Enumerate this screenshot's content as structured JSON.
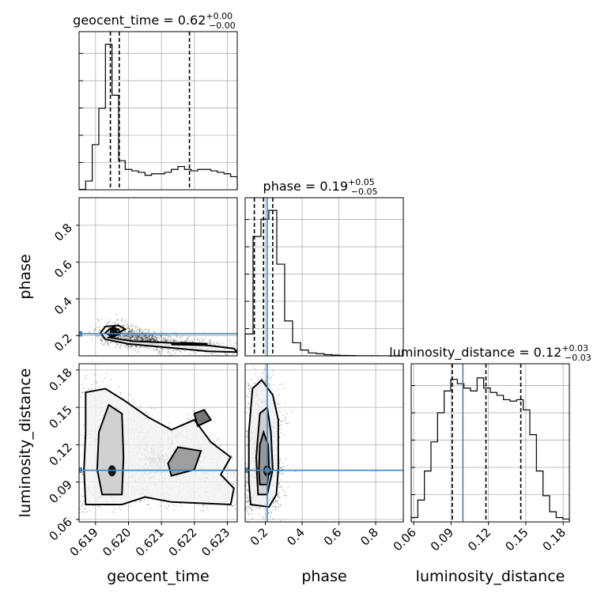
{
  "chart_data": {
    "type": "corner",
    "parameters": [
      {
        "name": "geocent_time",
        "axis_label": "geocent_time",
        "range": [
          0.6185,
          0.6233
        ],
        "ticks": [
          0.619,
          0.62,
          0.621,
          0.622,
          0.623
        ],
        "tick_labels": [
          "0.619",
          "0.620",
          "0.621",
          "0.622",
          "0.623"
        ],
        "title": {
          "prefix": "geocent_time = 0.62",
          "plus": "+0.00",
          "minus": "−0.00"
        },
        "quantiles": [
          0.61945,
          0.61972,
          0.62185
        ],
        "truth": null,
        "histogram": [
          0.003,
          0.06,
          0.31,
          0.56,
          1.0,
          0.65,
          0.2,
          0.14,
          0.13,
          0.12,
          0.1,
          0.11,
          0.11,
          0.12,
          0.14,
          0.16,
          0.14,
          0.13,
          0.14,
          0.14,
          0.13,
          0.12,
          0.11,
          0.09
        ]
      },
      {
        "name": "phase",
        "axis_label": "phase",
        "range": [
          0.09,
          0.95
        ],
        "ticks": [
          0.2,
          0.4,
          0.6,
          0.8
        ],
        "tick_labels": [
          "0.2",
          "0.4",
          "0.6",
          "0.8"
        ],
        "title": {
          "prefix": "phase = 0.19",
          "plus": "+0.05",
          "minus": "−0.05"
        },
        "quantiles": [
          0.14,
          0.19,
          0.24
        ],
        "truth": 0.21,
        "histogram": [
          0.15,
          0.82,
          0.94,
          1.0,
          0.63,
          0.24,
          0.09,
          0.04,
          0.02,
          0.015,
          0.008,
          0.005,
          0.003,
          0.002,
          0.001,
          0.001,
          0.0005,
          0.0003,
          0.0002,
          0.0001
        ]
      },
      {
        "name": "luminosity_distance",
        "axis_label": "luminosity_distance",
        "range": [
          0.058,
          0.185
        ],
        "ticks": [
          0.06,
          0.09,
          0.12,
          0.15,
          0.18
        ],
        "tick_labels": [
          "0.06",
          "0.09",
          "0.12",
          "0.15",
          "0.18"
        ],
        "title": {
          "prefix": "luminosity_distance = 0.12",
          "plus": "+0.03",
          "minus": "−0.03"
        },
        "quantiles": [
          0.091,
          0.118,
          0.146
        ],
        "truth": 0.0995,
        "histogram": [
          0.03,
          0.15,
          0.35,
          0.55,
          0.75,
          0.9,
          0.98,
          0.95,
          0.92,
          0.9,
          0.99,
          0.92,
          0.89,
          0.87,
          0.84,
          0.83,
          0.84,
          0.77,
          0.6,
          0.35,
          0.18,
          0.07,
          0.03,
          0.02
        ]
      }
    ],
    "panels_2d": [
      {
        "x": "geocent_time",
        "y": "phase",
        "density_peak": [
          0.61955,
          0.22
        ],
        "contours": [
          [
            [
              0.6194,
              0.19
            ],
            [
              0.6201,
              0.17
            ],
            [
              0.6214,
              0.16
            ],
            [
              0.6225,
              0.145
            ],
            [
              0.6232,
              0.13
            ],
            [
              0.6233,
              0.11
            ],
            [
              0.6224,
              0.115
            ],
            [
              0.6212,
              0.135
            ],
            [
              0.62,
              0.155
            ],
            [
              0.6193,
              0.18
            ],
            [
              0.61915,
              0.215
            ],
            [
              0.6193,
              0.25
            ],
            [
              0.6197,
              0.255
            ],
            [
              0.6199,
              0.235
            ],
            [
              0.6194,
              0.19
            ]
          ],
          [
            [
              0.6195,
              0.195
            ],
            [
              0.6193,
              0.215
            ],
            [
              0.61945,
              0.24
            ],
            [
              0.6197,
              0.235
            ],
            [
              0.61975,
              0.21
            ],
            [
              0.6195,
              0.195
            ]
          ],
          [
            [
              0.6213,
              0.152
            ],
            [
              0.6222,
              0.148
            ],
            [
              0.6224,
              0.156
            ],
            [
              0.6216,
              0.162
            ],
            [
              0.6213,
              0.152
            ]
          ]
        ]
      },
      {
        "x": "geocent_time",
        "y": "luminosity_distance",
        "density_peak": [
          0.6195,
          0.099
        ],
        "contours": [
          [
            [
              0.6187,
              0.072
            ],
            [
              0.6198,
              0.072
            ],
            [
              0.6205,
              0.078
            ],
            [
              0.6213,
              0.074
            ],
            [
              0.6222,
              0.073
            ],
            [
              0.6231,
              0.072
            ],
            [
              0.6232,
              0.085
            ],
            [
              0.6228,
              0.096
            ],
            [
              0.6231,
              0.11
            ],
            [
              0.6225,
              0.122
            ],
            [
              0.622,
              0.14
            ],
            [
              0.6213,
              0.132
            ],
            [
              0.6206,
              0.142
            ],
            [
              0.6199,
              0.155
            ],
            [
              0.6193,
              0.165
            ],
            [
              0.6187,
              0.162
            ],
            [
              0.6187,
              0.13
            ],
            [
              0.61865,
              0.1
            ],
            [
              0.6187,
              0.072
            ]
          ],
          [
            [
              0.6192,
              0.08
            ],
            [
              0.6198,
              0.08
            ],
            [
              0.61985,
              0.11
            ],
            [
              0.6198,
              0.145
            ],
            [
              0.6194,
              0.152
            ],
            [
              0.6191,
              0.13
            ],
            [
              0.61905,
              0.1
            ],
            [
              0.6192,
              0.08
            ]
          ],
          [
            [
              0.6213,
              0.095
            ],
            [
              0.622,
              0.1
            ],
            [
              0.6222,
              0.115
            ],
            [
              0.6215,
              0.118
            ],
            [
              0.6212,
              0.105
            ],
            [
              0.6213,
              0.095
            ]
          ],
          [
            [
              0.6221,
              0.135
            ],
            [
              0.6225,
              0.14
            ],
            [
              0.6223,
              0.148
            ],
            [
              0.622,
              0.145
            ],
            [
              0.6221,
              0.135
            ]
          ]
        ]
      },
      {
        "x": "phase",
        "y": "luminosity_distance",
        "density_peak": [
          0.21,
          0.099
        ],
        "contours": [
          [
            [
              0.12,
              0.072
            ],
            [
              0.22,
              0.07
            ],
            [
              0.26,
              0.08
            ],
            [
              0.27,
              0.1
            ],
            [
              0.27,
              0.14
            ],
            [
              0.24,
              0.16
            ],
            [
              0.18,
              0.172
            ],
            [
              0.13,
              0.165
            ],
            [
              0.11,
              0.13
            ],
            [
              0.11,
              0.09
            ],
            [
              0.12,
              0.072
            ]
          ],
          [
            [
              0.16,
              0.08
            ],
            [
              0.21,
              0.08
            ],
            [
              0.24,
              0.1
            ],
            [
              0.23,
              0.13
            ],
            [
              0.21,
              0.15
            ],
            [
              0.17,
              0.145
            ],
            [
              0.15,
              0.11
            ],
            [
              0.16,
              0.08
            ]
          ],
          [
            [
              0.17,
              0.088
            ],
            [
              0.21,
              0.088
            ],
            [
              0.22,
              0.1
            ],
            [
              0.215,
              0.12
            ],
            [
              0.19,
              0.13
            ],
            [
              0.17,
              0.12
            ],
            [
              0.165,
              0.1
            ],
            [
              0.17,
              0.088
            ]
          ]
        ]
      }
    ]
  }
}
